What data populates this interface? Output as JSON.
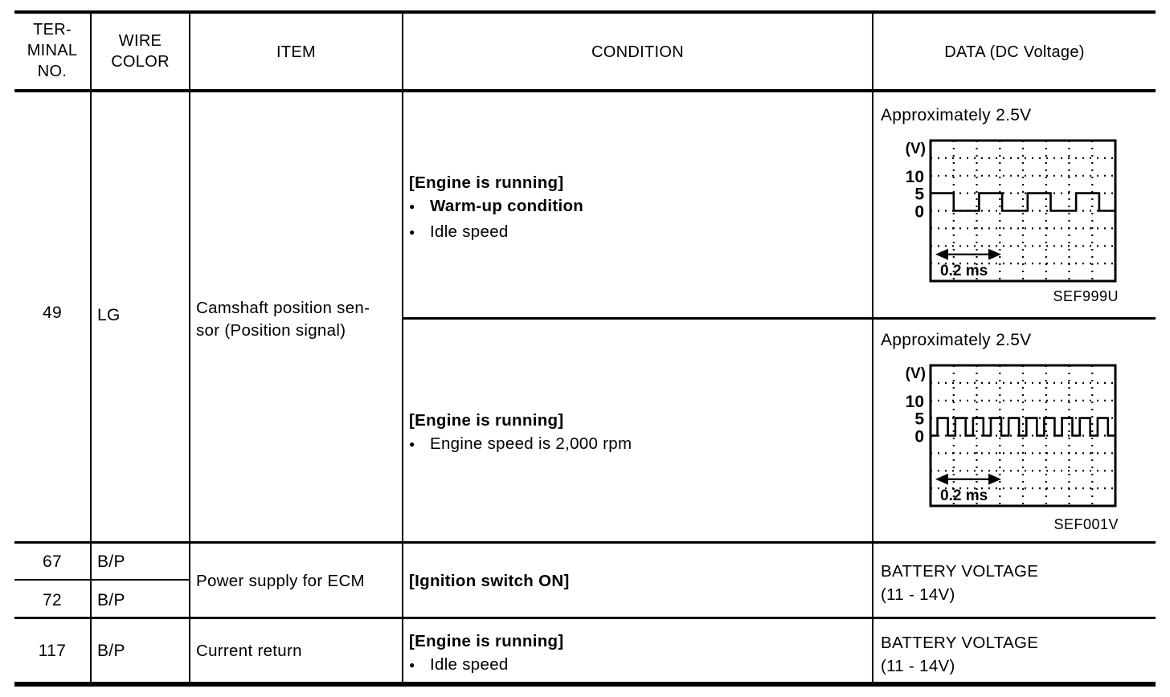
{
  "table": {
    "headers": {
      "terminal_lines": [
        "TER-",
        "MINAL",
        "NO."
      ],
      "wire_lines": [
        "WIRE",
        "COLOR"
      ],
      "item": "ITEM",
      "condition": "CONDITION",
      "data": "DATA (DC Voltage)"
    },
    "rows": {
      "r49": {
        "terminal": "49",
        "wire": "LG",
        "item_lines": [
          "Camshaft position sen-",
          "sor (Position signal)"
        ],
        "cond_a": {
          "bracket": "[Engine is running]",
          "bullets": [
            "Warm-up condition",
            "Idle speed"
          ]
        },
        "cond_b": {
          "bracket": "[Engine is running]",
          "bullets": [
            "Engine speed is 2,000 rpm"
          ]
        },
        "data_a_label": "Approximately 2.5V",
        "data_b_label": "Approximately 2.5V",
        "caption_a": "SEF999U",
        "caption_b": "SEF001V"
      },
      "r67": {
        "terminal": "67",
        "wire": "B/P"
      },
      "r72": {
        "terminal": "72",
        "wire": "B/P"
      },
      "r67_72_merged": {
        "item": "Power supply for ECM",
        "condition_bracket": "[Ignition switch ON]",
        "data_lines": [
          "BATTERY VOLTAGE",
          "(11 - 14V)"
        ]
      },
      "r117": {
        "terminal": "117",
        "wire": "B/P",
        "item": "Current return",
        "cond": {
          "bracket": "[Engine is running]",
          "bullets": [
            "Idle speed"
          ]
        },
        "data_lines": [
          "BATTERY VOLTAGE",
          "(11 - 14V)"
        ]
      }
    }
  },
  "chart_data": [
    {
      "type": "line",
      "subtype": "square-wave-oscilloscope",
      "title": "Approximately 2.5V",
      "y_unit_label": "(V)",
      "y_ticks": [
        10,
        5,
        0
      ],
      "y_divisions": 8,
      "x_divisions": 8,
      "volts_per_division": 5,
      "high_v": 5,
      "low_v": 0,
      "x_scale_label": "0.2 ms",
      "x_scale_span_divisions": 2,
      "grid": "dotted",
      "segments": [
        [
          5,
          1.0
        ],
        [
          0,
          1.1
        ],
        [
          5,
          1.0
        ],
        [
          0,
          1.1
        ],
        [
          5,
          1.0
        ],
        [
          0,
          1.1
        ],
        [
          5,
          1.0
        ],
        [
          0,
          0.7
        ]
      ],
      "caption": "SEF999U"
    },
    {
      "type": "line",
      "subtype": "square-wave-oscilloscope",
      "title": "Approximately 2.5V",
      "y_unit_label": "(V)",
      "y_ticks": [
        10,
        5,
        0
      ],
      "y_divisions": 8,
      "x_divisions": 8,
      "volts_per_division": 5,
      "high_v": 5,
      "low_v": 0,
      "x_scale_label": "0.2 ms",
      "x_scale_span_divisions": 2,
      "grid": "dotted",
      "segments": [
        [
          0,
          0.3
        ],
        [
          5,
          0.45
        ],
        [
          0,
          0.32
        ],
        [
          5,
          0.45
        ],
        [
          0,
          0.32
        ],
        [
          5,
          0.45
        ],
        [
          0,
          0.32
        ],
        [
          5,
          0.45
        ],
        [
          0,
          0.32
        ],
        [
          5,
          0.45
        ],
        [
          0,
          0.32
        ],
        [
          5,
          0.45
        ],
        [
          0,
          0.32
        ],
        [
          5,
          0.45
        ],
        [
          0,
          0.32
        ],
        [
          5,
          0.45
        ],
        [
          0,
          0.32
        ],
        [
          5,
          0.45
        ],
        [
          0,
          0.32
        ],
        [
          5,
          0.45
        ],
        [
          0,
          0.33
        ]
      ],
      "caption": "SEF001V"
    }
  ]
}
